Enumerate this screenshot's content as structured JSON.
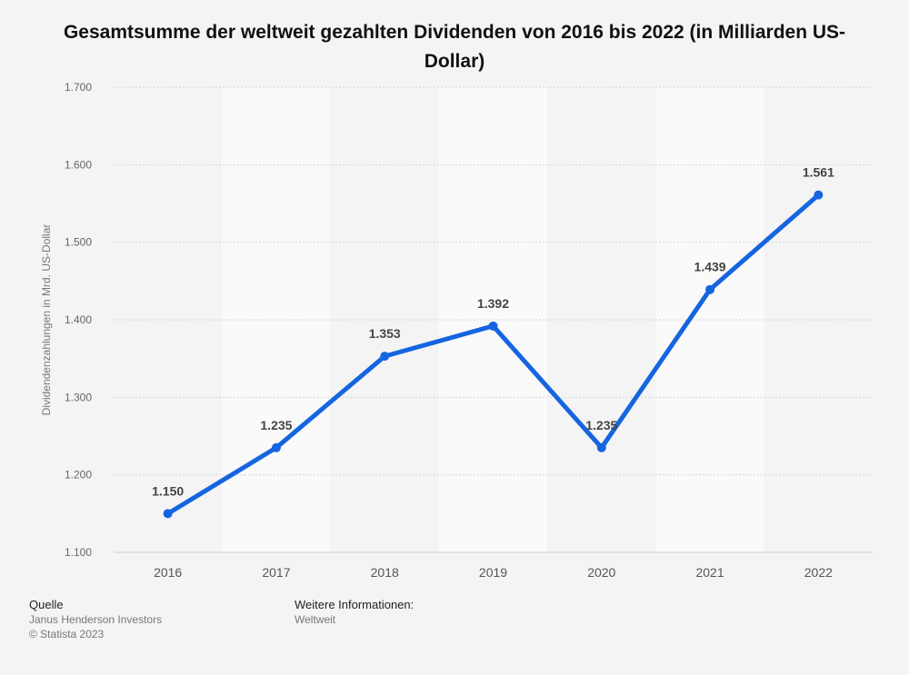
{
  "chart_data": {
    "type": "line",
    "title": "Gesamtsumme der weltweit gezahlten Dividenden von 2016 bis 2022 (in Milliarden US-Dollar)",
    "xlabel": "",
    "ylabel": "Dividendenzahlungen in Mrd. US-Dollar",
    "categories": [
      "2016",
      "2017",
      "2018",
      "2019",
      "2020",
      "2021",
      "2022"
    ],
    "values": [
      1150,
      1235,
      1353,
      1392,
      1235,
      1439,
      1561
    ],
    "data_labels": [
      "1.150",
      "1.235",
      "1.353",
      "1.392",
      "1.235",
      "1.439",
      "1.561"
    ],
    "ylim": [
      1100,
      1700
    ],
    "yticks": [
      1100,
      1200,
      1300,
      1400,
      1500,
      1600,
      1700
    ],
    "ytick_labels": [
      "1.100",
      "1.200",
      "1.300",
      "1.400",
      "1.500",
      "1.600",
      "1.700"
    ],
    "grid": true,
    "line_color": "#1565e0"
  },
  "footer": {
    "source_heading": "Quelle",
    "source_name": "Janus Henderson Investors",
    "copyright": "© Statista 2023",
    "info_heading": "Weitere Informationen:",
    "info_text": "Weltweit"
  }
}
